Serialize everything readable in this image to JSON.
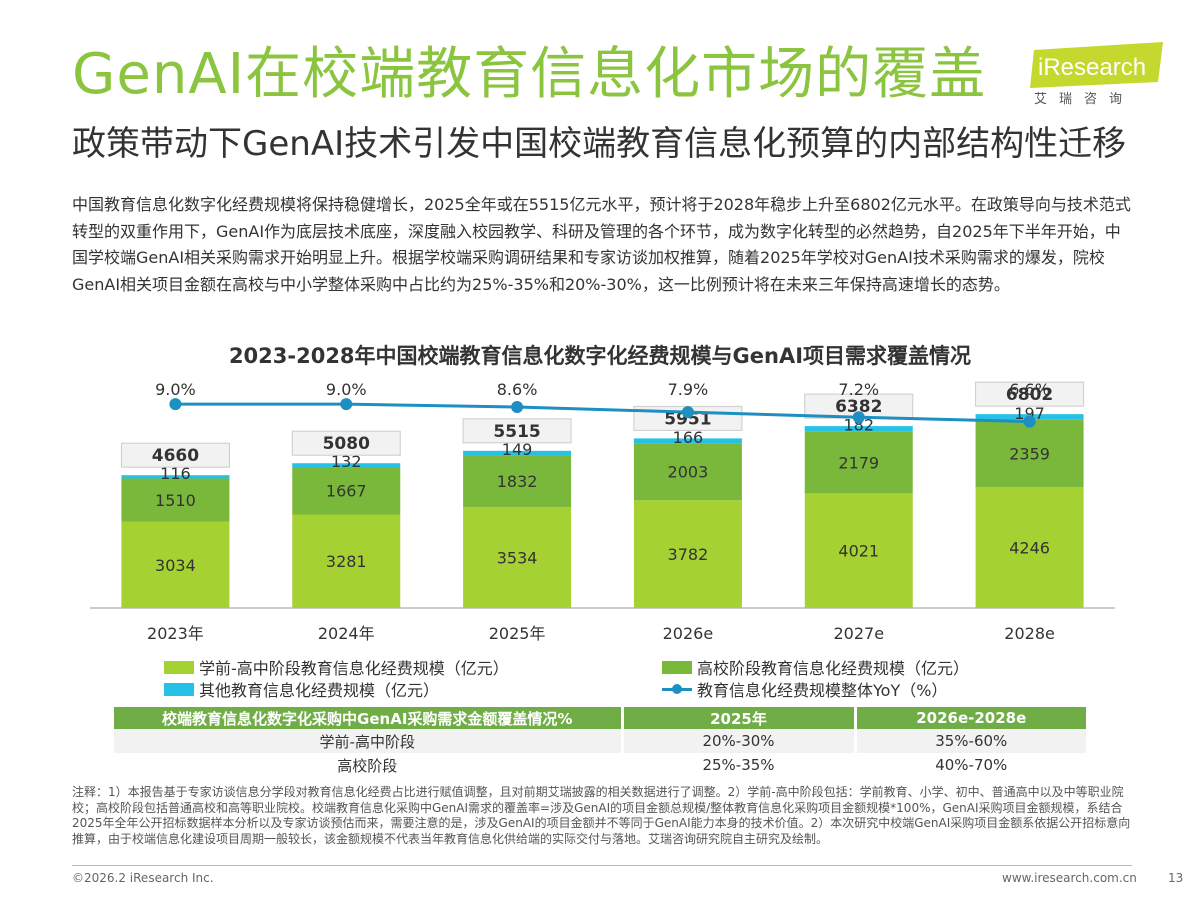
{
  "header": {
    "title": "GenAI在校端教育信息化市场的覆盖",
    "subtitle": "政策带动下GenAI技术引发中国校端教育信息化预算的内部结构性迁移",
    "logo_text": "iResearch",
    "logo_cn": "艾瑞咨询"
  },
  "intro": "中国教育信息化数字化经费规模将保持稳健增长，2025全年或在5515亿元水平，预计将于2028年稳步上升至6802亿元水平。在政策导向与技术范式转型的双重作用下，GenAI作为底层技术底座，深度融入校园教学、科研及管理的各个环节，成为数字化转型的必然趋势，自2025年下半年开始，中国学校端GenAI相关采购需求开始明显上升。根据学校端采购调研结果和专家访谈加权推算，随着2025年学校对GenAI技术采购需求的爆发，院校GenAI相关项目金额在高校与中小学整体采购中占比约为25%-35%和20%-30%，这一比例预计将在未来三年保持高速增长的态势。",
  "chart_data": {
    "type": "bar",
    "stacked": true,
    "title": "2023-2028年中国校端教育信息化数字化经费规模与GenAI项目需求覆盖情况",
    "categories": [
      "2023年",
      "2024年",
      "2025年",
      "2026e",
      "2027e",
      "2028e"
    ],
    "series": [
      {
        "name": "学前-高中阶段教育信息化经费规模（亿元）",
        "color": "#a5d132",
        "values": [
          3034,
          3281,
          3534,
          3782,
          4021,
          4246
        ]
      },
      {
        "name": "高校阶段教育信息化经费规模（亿元）",
        "color": "#7ab83c",
        "values": [
          1510,
          1667,
          1832,
          2003,
          2179,
          2359
        ]
      },
      {
        "name": "其他教育信息化经费规模（亿元）",
        "color": "#27c0e6",
        "values": [
          116,
          132,
          149,
          166,
          182,
          197
        ]
      }
    ],
    "totals": [
      4660,
      5080,
      5515,
      5951,
      6382,
      6802
    ],
    "line": {
      "name": "教育信息化经费规模整体YoY（%）",
      "color": "#1d8fc0",
      "values": [
        9.0,
        9.0,
        8.6,
        7.9,
        7.2,
        6.6
      ],
      "labels": [
        "9.0%",
        "9.0%",
        "8.6%",
        "7.9%",
        "7.2%",
        "6.6%"
      ]
    }
  },
  "coverage_table": {
    "headers": [
      "校端教育信息化数字化采购中GenAI采购需求金额覆盖情况%",
      "2025年",
      "2026e-2028e"
    ],
    "rows": [
      [
        "学前-高中阶段",
        "20%-30%",
        "35%-60%"
      ],
      [
        "高校阶段",
        "25%-35%",
        "40%-70%"
      ]
    ]
  },
  "notes": "注释：1）本报告基于专家访谈信息分学段对教育信息化经费占比进行赋值调整，且对前期艾瑞披露的相关数据进行了调整。2）学前-高中阶段包括：学前教育、小学、初中、普通高中以及中等职业院校；高校阶段包括普通高校和高等职业院校。校端教育信息化采购中GenAI需求的覆盖率=涉及GenAI的项目金额总规模/整体教育信息化采购项目金额规模*100%，GenAI采购项目金额规模，系结合2025年全年公开招标数据样本分析以及专家访谈预估而来，需要注意的是，涉及GenAI的项目金额并不等同于GenAI能力本身的技术价值。2）本次研究中校端GenAI采购项目金额系依据公开招标意向推算，由于校端信息化建设项目周期一般较长，该金额规模不代表当年教育信息化供给端的实际交付与落地。艾瑞咨询研究院自主研究及绘制。",
  "footer": {
    "copyright": "©2026.2 iResearch Inc.",
    "url": "www.iresearch.com.cn",
    "page": "13"
  }
}
